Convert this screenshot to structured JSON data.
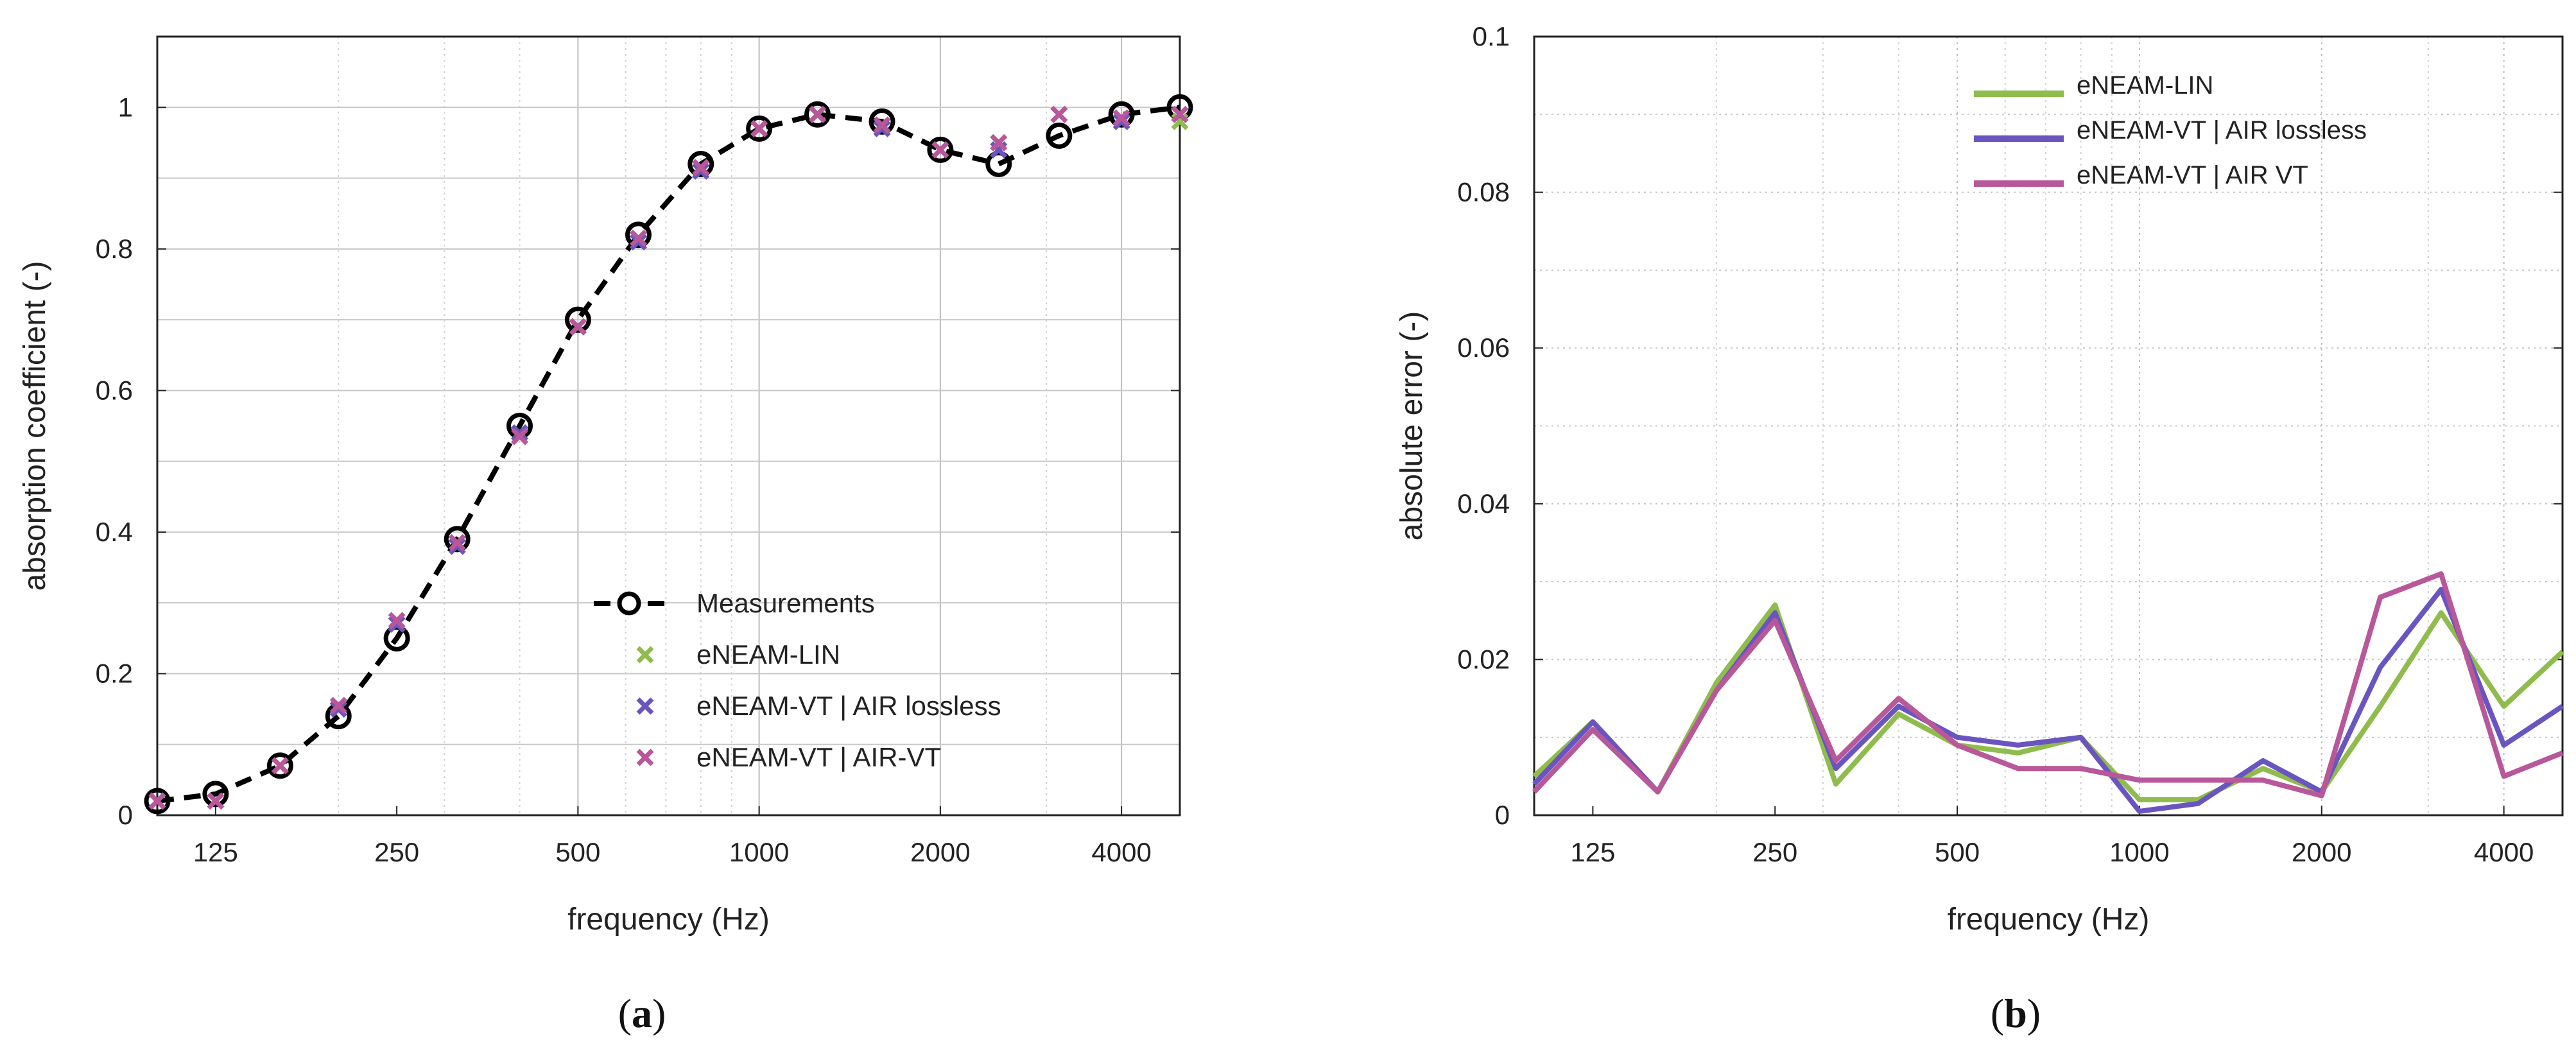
{
  "chart_data": [
    {
      "type": "scatter",
      "panel_label": "a",
      "xlabel": "frequency (Hz)",
      "ylabel": "absorption coefficient (-)",
      "x_scale": "log",
      "xlim": [
        100,
        5000
      ],
      "ylim": [
        0,
        1.1
      ],
      "x_ticks": [
        125,
        250,
        500,
        1000,
        2000,
        4000
      ],
      "x_tick_labels": [
        "125",
        "250",
        "500",
        "1000",
        "2000",
        "4000"
      ],
      "y_ticks": [
        0,
        0.2,
        0.4,
        0.6,
        0.8,
        1
      ],
      "y_tick_labels": [
        "0",
        "0.2",
        "0.4",
        "0.6",
        "0.8",
        "1"
      ],
      "grid": "major and minor",
      "legend": {
        "position": "bottom-right"
      },
      "x": [
        100,
        125,
        160,
        200,
        250,
        315,
        400,
        500,
        630,
        800,
        1000,
        1250,
        1600,
        2000,
        2500,
        3150,
        4000,
        5000
      ],
      "series": [
        {
          "name": "Measurements",
          "style": "dashed line with circle markers",
          "color": "#000000",
          "values": [
            0.02,
            0.03,
            0.07,
            0.14,
            0.25,
            0.39,
            0.55,
            0.7,
            0.82,
            0.92,
            0.97,
            0.99,
            0.98,
            0.94,
            0.92,
            0.96,
            0.99,
            1.0
          ]
        },
        {
          "name": "eNEAM-LIN",
          "style": "x markers",
          "color": "#8fbc4c",
          "values": [
            0.02,
            0.02,
            0.07,
            0.15,
            0.27,
            0.38,
            0.54,
            0.69,
            0.81,
            0.91,
            0.97,
            0.99,
            0.97,
            0.94,
            0.95,
            0.99,
            0.98,
            0.98
          ]
        },
        {
          "name": "eNEAM-VT | AIR lossless",
          "style": "x markers",
          "color": "#6a55c0",
          "values": [
            0.02,
            0.02,
            0.07,
            0.15,
            0.27,
            0.38,
            0.54,
            0.69,
            0.81,
            0.91,
            0.97,
            0.99,
            0.97,
            0.94,
            0.94,
            0.99,
            0.98,
            0.99
          ]
        },
        {
          "name": "eNEAM-VT | AIR-VT",
          "style": "x markers",
          "color": "#b8579a",
          "values": [
            0.02,
            0.02,
            0.07,
            0.155,
            0.275,
            0.385,
            0.535,
            0.69,
            0.815,
            0.915,
            0.97,
            0.99,
            0.975,
            0.94,
            0.95,
            0.99,
            0.985,
            0.99
          ]
        }
      ]
    },
    {
      "type": "line",
      "panel_label": "b",
      "xlabel": "frequency (Hz)",
      "ylabel": "absolute error (-)",
      "x_scale": "log",
      "xlim": [
        100,
        5000
      ],
      "ylim": [
        0,
        0.1
      ],
      "x_ticks": [
        125,
        250,
        500,
        1000,
        2000,
        4000
      ],
      "x_tick_labels": [
        "125",
        "250",
        "500",
        "1000",
        "2000",
        "4000"
      ],
      "y_ticks": [
        0,
        0.02,
        0.04,
        0.06,
        0.08,
        0.1
      ],
      "y_tick_labels": [
        "0",
        "0.02",
        "0.04",
        "0.06",
        "0.08",
        "0.1"
      ],
      "grid": "major and minor dotted",
      "legend": {
        "position": "top-center"
      },
      "x": [
        100,
        125,
        160,
        200,
        250,
        315,
        400,
        500,
        630,
        800,
        1000,
        1250,
        1600,
        2000,
        2500,
        3150,
        4000,
        5000
      ],
      "series": [
        {
          "name": "eNEAM-LIN",
          "color": "#8fbc4c",
          "values": [
            0.005,
            0.012,
            0.003,
            0.017,
            0.027,
            0.004,
            0.013,
            0.009,
            0.008,
            0.01,
            0.002,
            0.002,
            0.006,
            0.003,
            0.014,
            0.026,
            0.014,
            0.021
          ]
        },
        {
          "name": "eNEAM-VT | AIR lossless",
          "color": "#6a55c0",
          "values": [
            0.004,
            0.012,
            0.003,
            0.016,
            0.026,
            0.006,
            0.014,
            0.01,
            0.009,
            0.01,
            0.0005,
            0.0015,
            0.007,
            0.003,
            0.019,
            0.029,
            0.009,
            0.014
          ]
        },
        {
          "name": "eNEAM-VT | AIR VT",
          "color": "#b8579a",
          "values": [
            0.003,
            0.011,
            0.003,
            0.016,
            0.025,
            0.007,
            0.015,
            0.009,
            0.006,
            0.006,
            0.0045,
            0.0045,
            0.0045,
            0.0025,
            0.028,
            0.031,
            0.005,
            0.008
          ]
        }
      ]
    }
  ]
}
